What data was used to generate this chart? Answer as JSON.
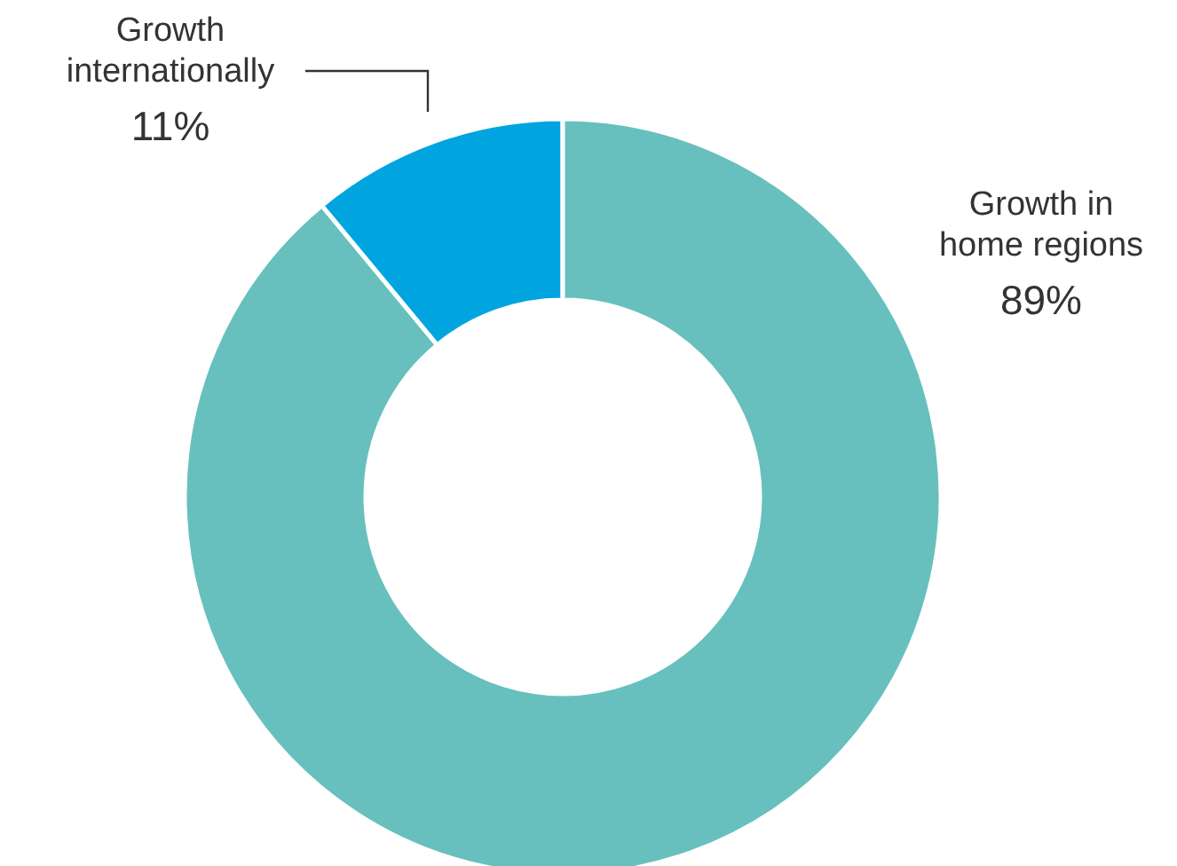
{
  "chart_data": {
    "type": "donut",
    "categories": [
      "Growth\ninternationally",
      "Growth in\nhome regions"
    ],
    "values": [
      11,
      89
    ],
    "colors": [
      "#00a5e0",
      "#67c0bd"
    ],
    "value_labels": [
      "11%",
      "89%"
    ]
  }
}
